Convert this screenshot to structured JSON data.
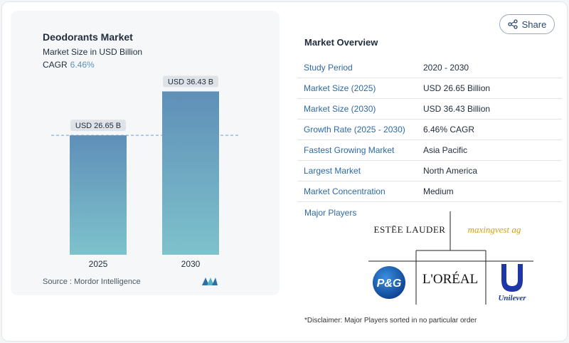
{
  "share": {
    "label": "Share"
  },
  "chart_data": {
    "type": "bar",
    "title": "Deodorants Market",
    "subtitle": "Market Size in USD Billion",
    "cagr_label": "CAGR",
    "cagr_value": "6.46%",
    "categories": [
      "2025",
      "2030"
    ],
    "values": [
      26.65,
      36.43
    ],
    "data_labels": [
      "USD 26.65 B",
      "USD 36.43 B"
    ],
    "ylim": [
      0,
      40
    ],
    "reference_line": 26.65,
    "grid": false,
    "colors": {
      "bar_top": "#5f8fb8",
      "bar_bottom": "#7ec2cc",
      "label_bg": "#dfe3e8",
      "dash": "#6f9fc6"
    }
  },
  "source": {
    "text": "Source :  Mordor Intelligence"
  },
  "overview": {
    "title": "Market Overview",
    "rows": [
      {
        "key": "Study Period",
        "value": "2020 - 2030"
      },
      {
        "key": "Market Size (2025)",
        "value": "USD 26.65 Billion"
      },
      {
        "key": "Market Size (2030)",
        "value": "USD 36.43 Billion"
      },
      {
        "key": "Growth Rate (2025 - 2030)",
        "value": "6.46% CAGR"
      },
      {
        "key": "Fastest Growing Market",
        "value": "Asia Pacific"
      },
      {
        "key": "Largest Market",
        "value": "North America"
      },
      {
        "key": "Market Concentration",
        "value": "Medium"
      }
    ]
  },
  "players": {
    "label": "Major Players",
    "logos": [
      "ESTĒE LAUDER",
      "maxingvest ag",
      "P&G",
      "L'ORÉAL",
      "Unilever"
    ]
  },
  "disclaimer": "*Disclaimer: Major Players sorted in no particular order",
  "icons": {
    "share": "share-icon",
    "source_logo": "mordor-intelligence-logo"
  }
}
